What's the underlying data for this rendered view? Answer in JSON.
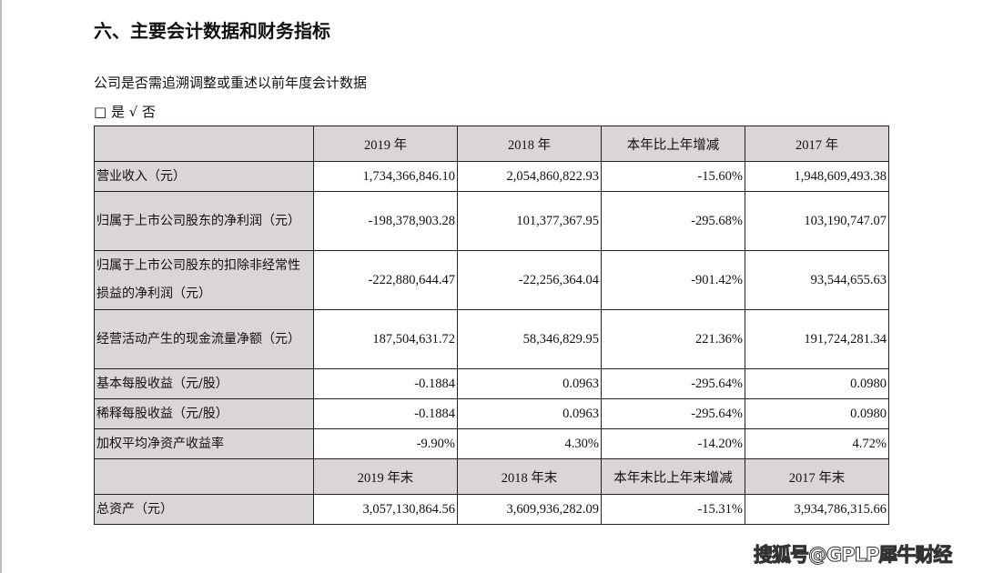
{
  "title": "六、主要会计数据和财务指标",
  "question": "公司是否需追溯调整或重述以前年度会计数据",
  "options": "□ 是 √ 否",
  "header1": [
    "",
    "2019 年",
    "2018 年",
    "本年比上年增减",
    "2017 年"
  ],
  "rows1": [
    {
      "label": "营业收入（元）",
      "values": [
        "1,734,366,846.10",
        "2,054,860,822.93",
        "-15.60%",
        "1,948,609,493.38"
      ]
    },
    {
      "label": "归属于上市公司股东的净利润（元）",
      "values": [
        "-198,378,903.28",
        "101,377,367.95",
        "-295.68%",
        "103,190,747.07"
      ]
    },
    {
      "label": "归属于上市公司股东的扣除非经常性损益的净利润（元）",
      "values": [
        "-222,880,644.47",
        "-22,256,364.04",
        "-901.42%",
        "93,544,655.63"
      ]
    },
    {
      "label": "经营活动产生的现金流量净额（元）",
      "values": [
        "187,504,631.72",
        "58,346,829.95",
        "221.36%",
        "191,724,281.34"
      ]
    },
    {
      "label": "基本每股收益（元/股）",
      "values": [
        "-0.1884",
        "0.0963",
        "-295.64%",
        "0.0980"
      ]
    },
    {
      "label": "稀释每股收益（元/股）",
      "values": [
        "-0.1884",
        "0.0963",
        "-295.64%",
        "0.0980"
      ]
    },
    {
      "label": "加权平均净资产收益率",
      "values": [
        "-9.90%",
        "4.30%",
        "-14.20%",
        "4.72%"
      ]
    }
  ],
  "header2": [
    "",
    "2019 年末",
    "2018 年末",
    "本年末比上年末增减",
    "2017 年末"
  ],
  "rows2": [
    {
      "label": "总资产（元）",
      "values": [
        "3,057,130,864.56",
        "3,609,936,282.09",
        "-15.31%",
        "3,934,786,315.66"
      ]
    }
  ],
  "watermark": "搜狐号@GPLP犀牛财经"
}
